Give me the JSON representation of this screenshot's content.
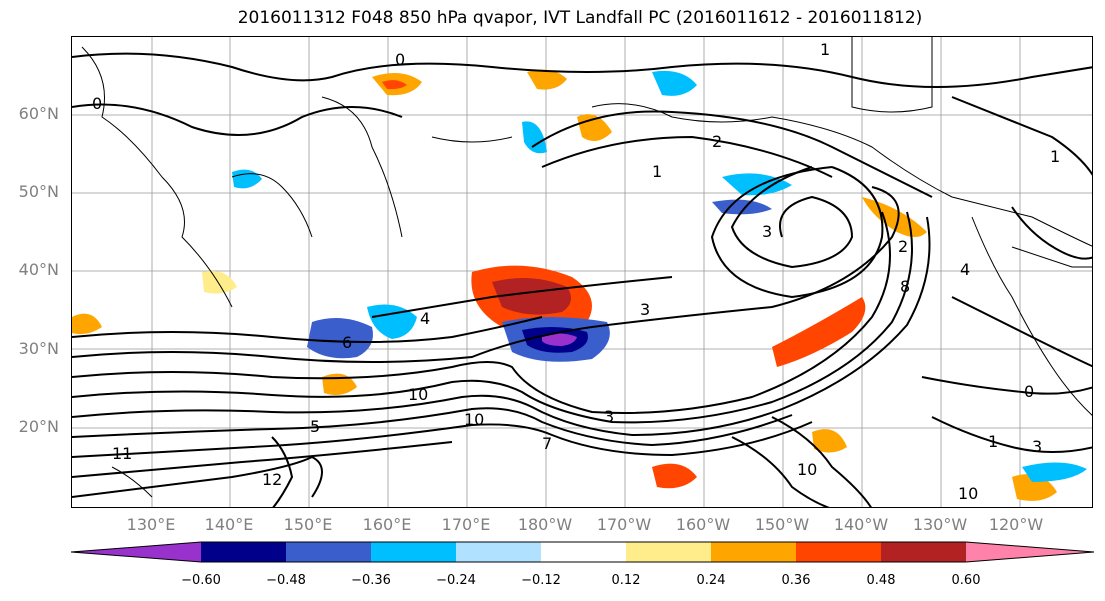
{
  "title": "2016011312 F048 850 hPa qvapor, IVT Landfall PC (2016011612 - 2016011812)",
  "latitude_labels": [
    "60°N",
    "50°N",
    "40°N",
    "30°N",
    "20°N"
  ],
  "longitude_labels": [
    "130°E",
    "140°E",
    "150°E",
    "160°E",
    "170°E",
    "180°W",
    "170°W",
    "160°W",
    "150°W",
    "140°W",
    "130°W",
    "120°W"
  ],
  "colorbar": {
    "tick_labels": [
      "−0.60",
      "−0.48",
      "−0.36",
      "−0.24",
      "−0.12",
      "0.12",
      "0.24",
      "0.36",
      "0.48",
      "0.60"
    ],
    "colors": [
      "#9932cc",
      "#00008b",
      "#3a5fcd",
      "#00bfff",
      "#b0e2ff",
      "#ffffff",
      "#ffec8b",
      "#ffa500",
      "#ff4500",
      "#b22222",
      "#ff82ab"
    ]
  },
  "contour_labels": [
    "0",
    "0",
    "1",
    "1",
    "1",
    "2",
    "2",
    "3",
    "3",
    "4",
    "5",
    "6",
    "8",
    "10",
    "10",
    "11",
    "12",
    "4",
    "3",
    "10",
    "10",
    "0",
    "3",
    "1",
    "7"
  ]
}
